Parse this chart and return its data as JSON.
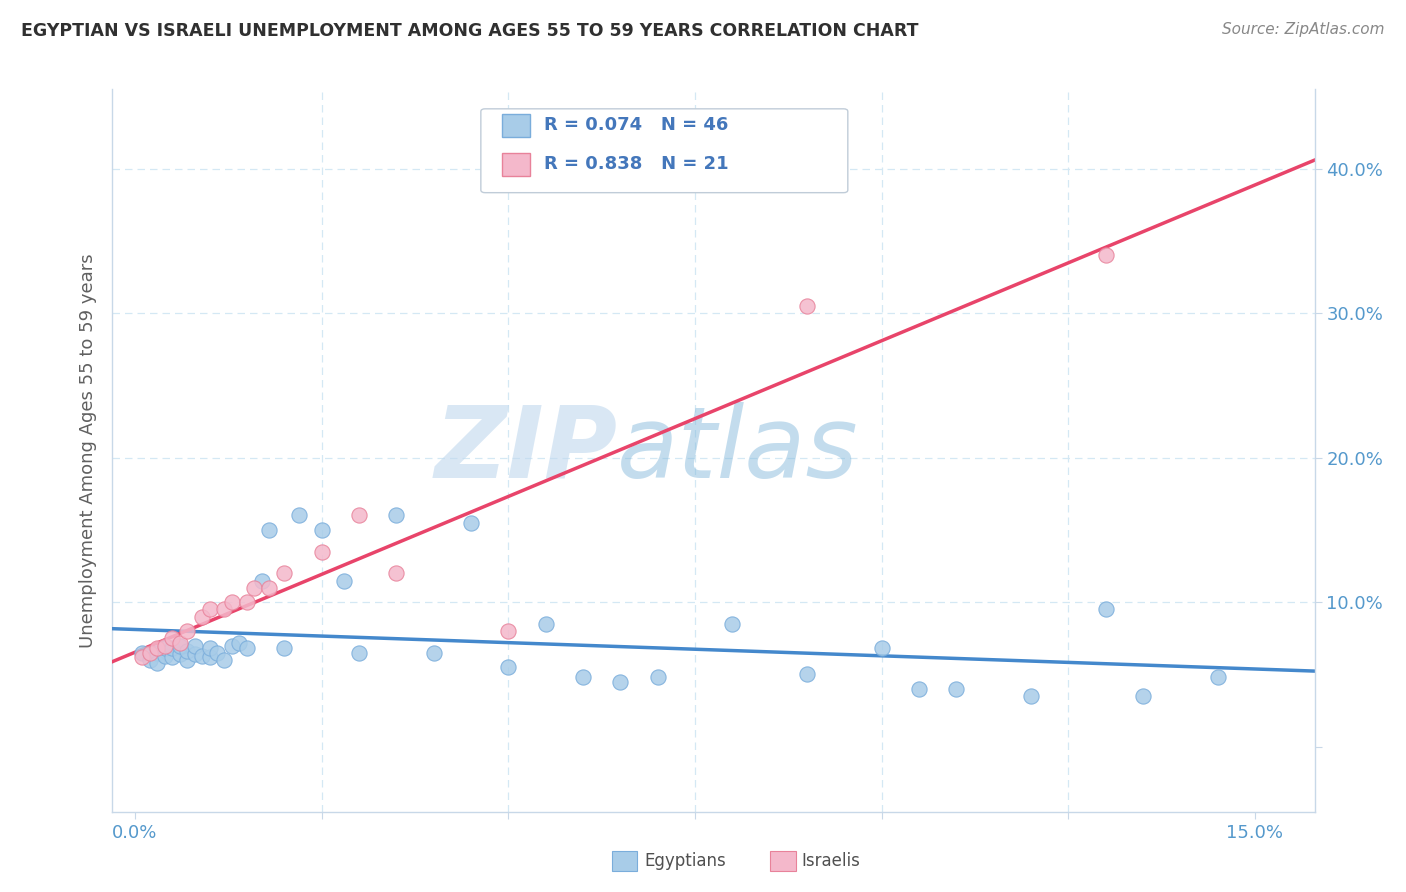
{
  "title": "EGYPTIAN VS ISRAELI UNEMPLOYMENT AMONG AGES 55 TO 59 YEARS CORRELATION CHART",
  "source": "Source: ZipAtlas.com",
  "ylabel": "Unemployment Among Ages 55 to 59 years",
  "watermark_zip": "ZIP",
  "watermark_atlas": "atlas",
  "legend_r1": "R = 0.074",
  "legend_n1": "N = 46",
  "legend_r2": "R = 0.838",
  "legend_n2": "N = 21",
  "egypt_fill": "#a8cce8",
  "egypt_edge": "#7aaddb",
  "israel_fill": "#f4b8cb",
  "israel_edge": "#e8829a",
  "egypt_line_color": "#4488cc",
  "israel_line_color": "#e8446a",
  "legend_text_color": "#4477bb",
  "axis_tick_color": "#5599cc",
  "ylabel_color": "#606060",
  "title_color": "#303030",
  "grid_color": "#d4e8f4",
  "xlim": [
    -0.003,
    0.158
  ],
  "ylim": [
    -0.045,
    0.455
  ],
  "x_ticks": [
    0.0,
    0.025,
    0.05,
    0.075,
    0.1,
    0.125,
    0.15
  ],
  "x_tick_labels": [
    "0.0%",
    "",
    "",
    "",
    "",
    "",
    "15.0%"
  ],
  "y_ticks": [
    0.0,
    0.1,
    0.2,
    0.3,
    0.4
  ],
  "y_tick_labels": [
    "",
    "10.0%",
    "20.0%",
    "30.0%",
    "40.0%"
  ],
  "egypt_x": [
    0.001,
    0.002,
    0.003,
    0.003,
    0.004,
    0.004,
    0.005,
    0.005,
    0.006,
    0.006,
    0.007,
    0.007,
    0.008,
    0.008,
    0.009,
    0.01,
    0.01,
    0.011,
    0.012,
    0.013,
    0.014,
    0.015,
    0.017,
    0.018,
    0.02,
    0.022,
    0.025,
    0.028,
    0.03,
    0.035,
    0.04,
    0.045,
    0.05,
    0.055,
    0.06,
    0.065,
    0.07,
    0.08,
    0.09,
    0.1,
    0.105,
    0.11,
    0.12,
    0.13,
    0.135,
    0.145
  ],
  "egypt_y": [
    0.065,
    0.06,
    0.065,
    0.058,
    0.063,
    0.068,
    0.062,
    0.068,
    0.064,
    0.07,
    0.06,
    0.066,
    0.064,
    0.07,
    0.063,
    0.062,
    0.068,
    0.065,
    0.06,
    0.07,
    0.072,
    0.068,
    0.115,
    0.15,
    0.068,
    0.16,
    0.15,
    0.115,
    0.065,
    0.16,
    0.065,
    0.155,
    0.055,
    0.085,
    0.048,
    0.045,
    0.048,
    0.085,
    0.05,
    0.068,
    0.04,
    0.04,
    0.035,
    0.095,
    0.035,
    0.048
  ],
  "israel_x": [
    0.001,
    0.002,
    0.003,
    0.004,
    0.005,
    0.006,
    0.007,
    0.009,
    0.01,
    0.012,
    0.013,
    0.015,
    0.016,
    0.018,
    0.02,
    0.025,
    0.03,
    0.035,
    0.05,
    0.09,
    0.13
  ],
  "israel_y": [
    0.062,
    0.065,
    0.068,
    0.07,
    0.075,
    0.072,
    0.08,
    0.09,
    0.095,
    0.095,
    0.1,
    0.1,
    0.11,
    0.11,
    0.12,
    0.135,
    0.16,
    0.12,
    0.08,
    0.305,
    0.34
  ]
}
